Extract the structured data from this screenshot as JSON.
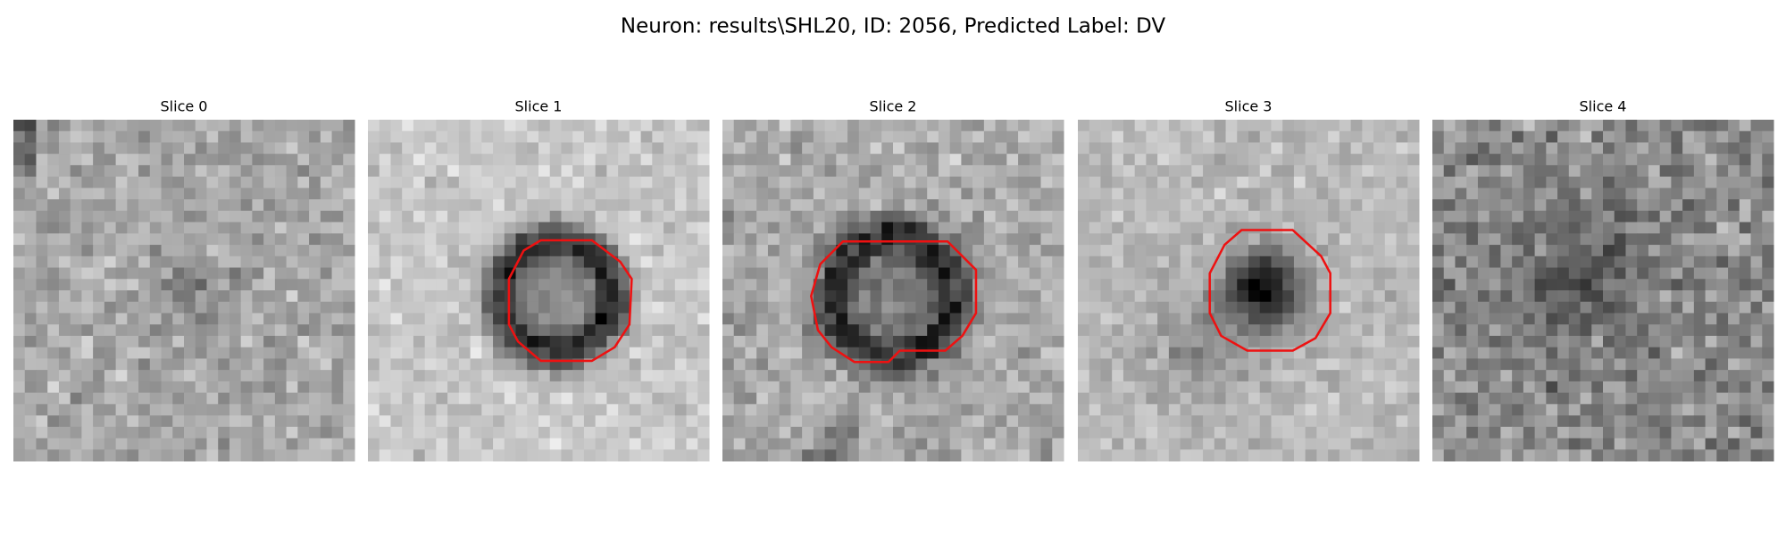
{
  "title": "Neuron: results\\SHL20, ID: 2056, Predicted Label: DV",
  "panels": [
    {
      "title": "Slice 0"
    },
    {
      "title": "Slice 1"
    },
    {
      "title": "Slice 2"
    },
    {
      "title": "Slice 3"
    },
    {
      "title": "Slice 4"
    }
  ]
}
